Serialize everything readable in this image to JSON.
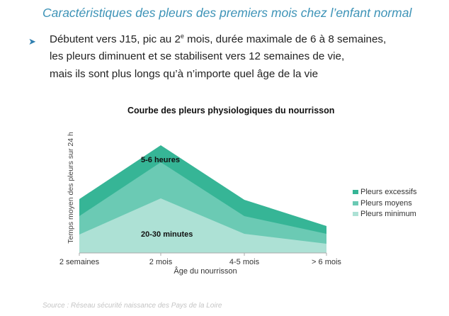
{
  "slide": {
    "title": "Caractéristiques des pleurs des premiers mois chez l’enfant normal",
    "bullet_icon": "arrowhead-bullet-icon",
    "bullet_lines": [
      {
        "before": "Débutent vers J15, pic au 2",
        "sup": "e",
        "after": " mois, durée maximale de 6 à 8 semaines,"
      },
      {
        "text": "les pleurs diminuent et se stabilisent vers 12 semaines de vie,"
      },
      {
        "text": "mais ils sont plus longs qu’à n’importe quel âge de la vie"
      }
    ],
    "source": "Source : Réseau sécurité naissance des Pays de la Loire"
  },
  "chart_data": {
    "type": "area",
    "stacked": true,
    "title": "Courbe des pleurs physiologiques du nourrisson",
    "xlabel": "Âge du nourrisson",
    "ylabel": "Temps moyen des pleurs sur 24 h",
    "categories": [
      "2 semaines",
      "2 mois",
      "4-5 mois",
      "> 6 mois"
    ],
    "ylim": [
      0,
      160
    ],
    "y_ticks_shown": false,
    "grid": false,
    "legend_position": "right",
    "series": [
      {
        "name": "Pleurs minimum",
        "values": [
          26,
          77,
          27,
          13
        ],
        "color": "#ade1d5"
      },
      {
        "name": "Pleurs moyens",
        "values": [
          26,
          51,
          25,
          14
        ],
        "color": "#6bcab4"
      },
      {
        "name": "Pleurs excessifs",
        "values": [
          24,
          24,
          23,
          11
        ],
        "color": "#36b596"
      }
    ],
    "legend_order": [
      2,
      1,
      0
    ],
    "annotations": [
      "5-6 heures",
      "20-30 minutes"
    ]
  }
}
